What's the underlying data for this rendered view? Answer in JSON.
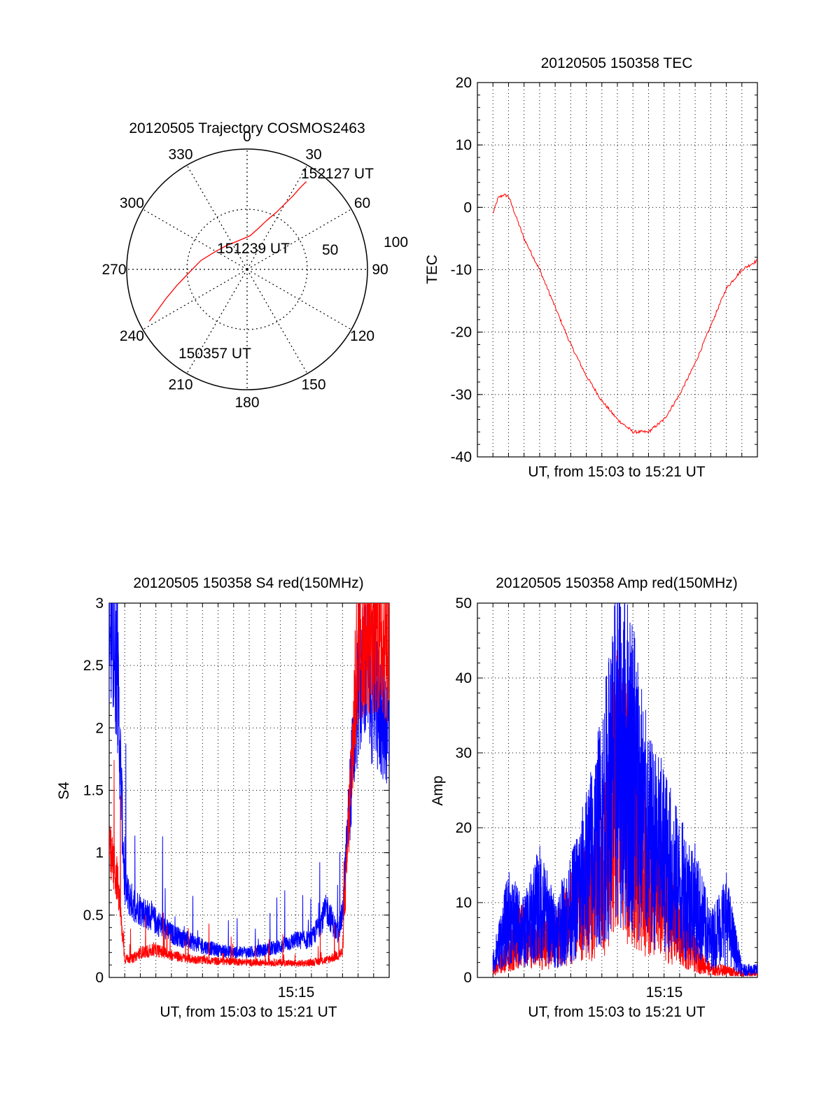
{
  "colors": {
    "red": "#ff0000",
    "blue": "#0000ff",
    "axis": "#000000",
    "grid": "#000000"
  },
  "chart_data": [
    {
      "type": "polar",
      "title": "20120505 Trajectory COSMOS2463",
      "angle_labels": [
        "0",
        "30",
        "60",
        "90",
        "120",
        "150",
        "180",
        "210",
        "240",
        "270",
        "300",
        "330"
      ],
      "radius_labels": [
        "50",
        "100"
      ],
      "radius_max": 100,
      "grid": true,
      "track": {
        "color": "red",
        "points": [
          [
            242,
            92
          ],
          [
            245,
            83
          ],
          [
            250,
            72
          ],
          [
            257,
            60
          ],
          [
            266,
            49
          ],
          [
            281,
            39
          ],
          [
            300,
            30
          ],
          [
            320,
            26
          ],
          [
            345,
            25
          ],
          [
            5,
            28
          ],
          [
            15,
            35
          ],
          [
            22,
            44
          ],
          [
            27,
            53
          ],
          [
            30,
            63
          ],
          [
            32,
            72
          ],
          [
            33,
            81
          ],
          [
            34,
            88
          ]
        ]
      },
      "annotations": [
        {
          "text": "152127 UT",
          "at": "track-end"
        },
        {
          "text": "151239 UT",
          "at": "track-middle"
        },
        {
          "text": "150357 UT",
          "at": "track-start"
        }
      ]
    },
    {
      "type": "line",
      "title": "20120505 150358 TEC",
      "xlabel": "UT, from 15:03 to 15:21 UT",
      "ylabel": "TEC",
      "xlim": [
        "15:03",
        "15:21"
      ],
      "ylim": [
        -40,
        20
      ],
      "yticks": [
        "20",
        "10",
        "0",
        "-10",
        "-20",
        "-30",
        "-40"
      ],
      "grid": true,
      "series": [
        {
          "color": "red",
          "x": [
            "15:04",
            "15:04:20",
            "15:04:40",
            "15:05",
            "15:06",
            "15:07",
            "15:08",
            "15:09",
            "15:10",
            "15:11",
            "15:12",
            "15:13",
            "15:14",
            "15:15",
            "15:16",
            "15:17",
            "15:18",
            "15:19",
            "15:20",
            "15:21"
          ],
          "values": [
            -1,
            1.5,
            2,
            1.8,
            -5,
            -10,
            -16,
            -22,
            -27,
            -31,
            -34,
            -36,
            -36,
            -34,
            -30,
            -25,
            -19,
            -13,
            -10,
            -8.5
          ]
        }
      ]
    },
    {
      "type": "line",
      "title": "20120505 150358 S4 red(150MHz)",
      "xlabel": "UT, from 15:03 to 15:21 UT",
      "ylabel": "S4",
      "xlim": [
        "15:03",
        "15:21"
      ],
      "ylim": [
        0,
        3
      ],
      "yticks": [
        "3",
        "2.5",
        "2",
        "1.5",
        "1",
        "0.5",
        "0"
      ],
      "xticks": [
        "15:15"
      ],
      "grid": true,
      "series": [
        {
          "color": "blue",
          "x": [
            "15:03",
            "15:03:30",
            "15:04",
            "15:04:30",
            "15:05",
            "15:06",
            "15:07",
            "15:08",
            "15:09",
            "15:10",
            "15:11",
            "15:12",
            "15:13",
            "15:14",
            "15:15",
            "15:16",
            "15:17",
            "15:17:40",
            "15:18",
            "15:18:30",
            "15:19",
            "15:19:30",
            "15:20",
            "15:21"
          ],
          "values": [
            2.8,
            2.5,
            0.7,
            0.6,
            0.55,
            0.45,
            0.35,
            0.3,
            0.25,
            0.22,
            0.2,
            0.2,
            0.22,
            0.25,
            0.3,
            0.3,
            0.55,
            0.35,
            0.5,
            1.5,
            2.3,
            2.5,
            2.2,
            2.0
          ]
        },
        {
          "color": "red",
          "x": [
            "15:03",
            "15:03:30",
            "15:04",
            "15:04:30",
            "15:05",
            "15:06",
            "15:07",
            "15:08",
            "15:09",
            "15:10",
            "15:11",
            "15:12",
            "15:13",
            "15:14",
            "15:15",
            "15:16",
            "15:17",
            "15:18",
            "15:18:30",
            "15:19",
            "15:20",
            "15:21"
          ],
          "values": [
            1.0,
            0.8,
            0.15,
            0.15,
            0.2,
            0.22,
            0.18,
            0.15,
            0.14,
            0.13,
            0.13,
            0.12,
            0.12,
            0.12,
            0.11,
            0.12,
            0.14,
            0.2,
            1.5,
            2.7,
            2.8,
            2.7
          ]
        }
      ]
    },
    {
      "type": "line",
      "title": "20120505 150358 Amp red(150MHz)",
      "xlabel": "UT, from 15:03 to 15:21 UT",
      "ylabel": "Amp",
      "xlim": [
        "15:03",
        "15:21"
      ],
      "ylim": [
        0,
        50
      ],
      "yticks": [
        "50",
        "40",
        "30",
        "20",
        "10",
        "0"
      ],
      "xticks": [
        "15:15"
      ],
      "grid": true,
      "series": [
        {
          "color": "red",
          "x": [
            "15:04",
            "15:05",
            "15:06",
            "15:07",
            "15:08",
            "15:09",
            "15:10",
            "15:11",
            "15:12",
            "15:13",
            "15:14",
            "15:15",
            "15:16",
            "15:17",
            "15:18",
            "15:19",
            "15:20",
            "15:21"
          ],
          "values": [
            1,
            3,
            6,
            5,
            5,
            8,
            10,
            12,
            25,
            20,
            12,
            10,
            6,
            3,
            1,
            1,
            0.5,
            0.5
          ]
        },
        {
          "color": "blue",
          "x": [
            "15:04",
            "15:05",
            "15:06",
            "15:07",
            "15:08",
            "15:09",
            "15:10",
            "15:11",
            "15:12",
            "15:13",
            "15:14",
            "15:15",
            "15:16",
            "15:17",
            "15:18",
            "15:19",
            "15:20",
            "15:21"
          ],
          "values": [
            2,
            8,
            6,
            10,
            6,
            9,
            14,
            20,
            30,
            28,
            18,
            16,
            12,
            10,
            5,
            8,
            1,
            1
          ]
        }
      ]
    }
  ]
}
